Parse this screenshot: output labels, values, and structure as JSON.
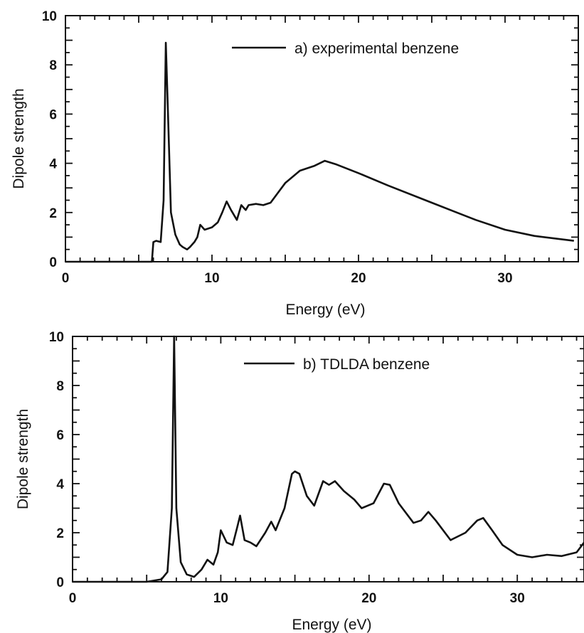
{
  "chart_data": [
    {
      "type": "line",
      "xlabel": "Energy (eV)",
      "ylabel": "Dipole strength",
      "xlim": [
        0,
        35
      ],
      "ylim": [
        0,
        10
      ],
      "xticks": [
        0,
        10,
        20,
        30
      ],
      "yticks": [
        0,
        2,
        4,
        6,
        8,
        10
      ],
      "grid": false,
      "legend_position": "top-right",
      "series": [
        {
          "name": "a) experimental benzene",
          "color": "#111111",
          "x": [
            0,
            5.9,
            6.0,
            6.2,
            6.5,
            6.7,
            6.85,
            7.0,
            7.2,
            7.5,
            7.8,
            8.0,
            8.3,
            8.5,
            8.8,
            9.0,
            9.2,
            9.5,
            10.0,
            10.4,
            10.7,
            11.0,
            11.3,
            11.7,
            12.0,
            12.3,
            12.5,
            13.0,
            13.5,
            14.0,
            14.5,
            15.0,
            16.0,
            17.0,
            17.7,
            18.5,
            20.0,
            22.0,
            25.0,
            28.0,
            30.0,
            32.0,
            34.7
          ],
          "y": [
            0,
            0,
            0.8,
            0.85,
            0.8,
            2.5,
            8.9,
            6.0,
            2.0,
            1.1,
            0.7,
            0.6,
            0.5,
            0.6,
            0.8,
            1.0,
            1.5,
            1.3,
            1.4,
            1.6,
            2.0,
            2.45,
            2.1,
            1.7,
            2.3,
            2.1,
            2.3,
            2.35,
            2.3,
            2.4,
            2.8,
            3.2,
            3.7,
            3.9,
            4.1,
            3.95,
            3.6,
            3.1,
            2.4,
            1.7,
            1.3,
            1.05,
            0.85
          ]
        }
      ]
    },
    {
      "type": "line",
      "xlabel": "Energy (eV)",
      "ylabel": "Dipole strength",
      "xlim": [
        0,
        34.5
      ],
      "ylim": [
        0,
        10
      ],
      "xticks": [
        0,
        10,
        20,
        30
      ],
      "yticks": [
        0,
        2,
        4,
        6,
        8,
        10
      ],
      "grid": false,
      "legend_position": "top-right",
      "series": [
        {
          "name": "b)  TDLDA benzene",
          "color": "#111111",
          "x": [
            0,
            5.0,
            6.0,
            6.4,
            6.7,
            6.85,
            7.0,
            7.3,
            7.7,
            8.2,
            8.7,
            9.1,
            9.5,
            9.8,
            10.0,
            10.4,
            10.8,
            11.1,
            11.3,
            11.6,
            12.0,
            12.4,
            13.0,
            13.4,
            13.7,
            14.3,
            14.8,
            15.0,
            15.3,
            15.8,
            16.3,
            16.9,
            17.3,
            17.7,
            18.3,
            19.0,
            19.5,
            20.3,
            21.0,
            21.4,
            22.0,
            23.0,
            23.5,
            24.0,
            24.5,
            25.5,
            26.5,
            27.3,
            27.7,
            28.3,
            29.0,
            30.0,
            31.0,
            32.0,
            33.0,
            34.0,
            34.5
          ],
          "y": [
            0,
            0,
            0.1,
            0.4,
            3.0,
            10.0,
            3.0,
            0.8,
            0.3,
            0.2,
            0.5,
            0.9,
            0.7,
            1.2,
            2.1,
            1.6,
            1.5,
            2.2,
            2.7,
            1.7,
            1.6,
            1.45,
            2.0,
            2.45,
            2.1,
            3.0,
            4.4,
            4.5,
            4.4,
            3.5,
            3.1,
            4.1,
            3.95,
            4.1,
            3.7,
            3.35,
            3.0,
            3.2,
            4.0,
            3.95,
            3.2,
            2.4,
            2.5,
            2.85,
            2.5,
            1.7,
            2.0,
            2.5,
            2.6,
            2.1,
            1.5,
            1.1,
            1.0,
            1.1,
            1.05,
            1.2,
            1.6
          ]
        }
      ]
    }
  ]
}
